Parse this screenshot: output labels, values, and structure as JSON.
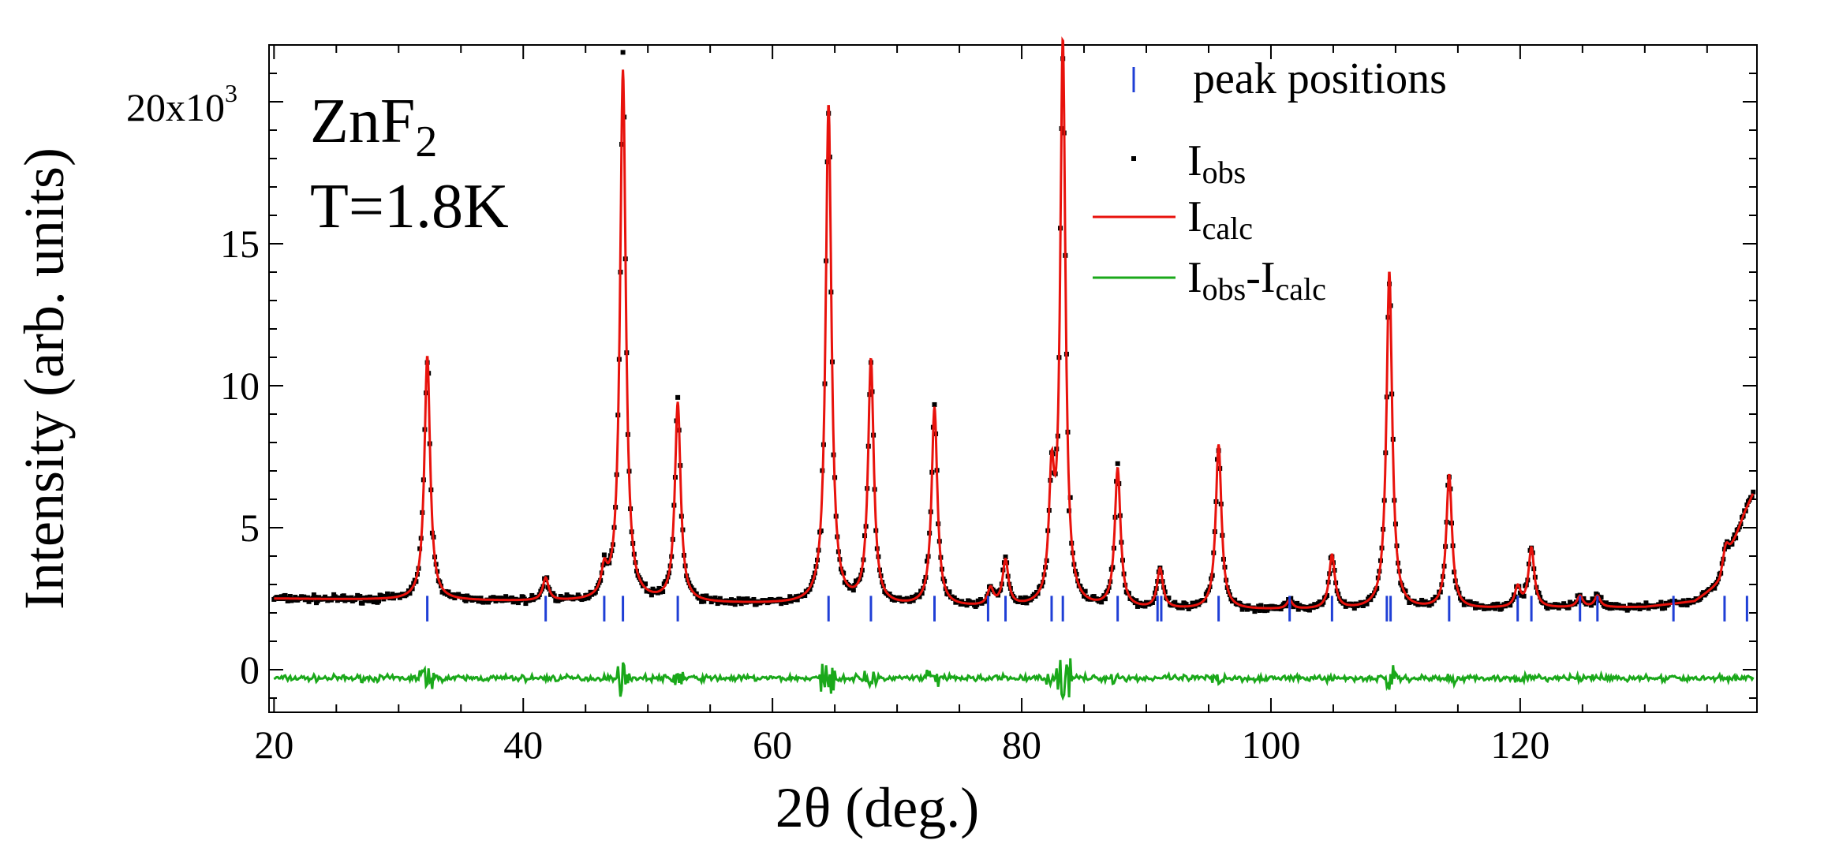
{
  "chart_data": {
    "type": "line",
    "xlabel": "2θ (deg.)",
    "ylabel": "Intensity (arb. units)",
    "xlim": [
      19.6,
      139
    ],
    "ylim": [
      -1.5,
      22.0
    ],
    "y_multiplier_label": "20x10",
    "y_multiplier_exp": "3",
    "x_ticks": [
      20,
      40,
      60,
      80,
      100,
      120
    ],
    "y_ticks": [
      0,
      5,
      10,
      15
    ],
    "y_tick_labels": [
      "0",
      "5",
      "10",
      "15"
    ],
    "annotation": {
      "compound_base": "ZnF",
      "compound_sub": "2",
      "temperature": "T=1.8K"
    },
    "legend": {
      "placement": "top-right",
      "peak_label": "peak positions",
      "obs_label": {
        "base": "I",
        "sub": "obs"
      },
      "calc_label": {
        "base": "I",
        "sub": "calc"
      },
      "diff_label": {
        "base1": "I",
        "sub1": "obs",
        "sep": "-",
        "base2": "I",
        "sub2": "calc"
      }
    },
    "colors": {
      "obs": "#000000",
      "calc": "#e8120c",
      "diff": "#1aa81a",
      "peak": "#1f3fd6"
    },
    "background": [
      [
        20,
        2.5
      ],
      [
        30,
        2.45
      ],
      [
        40,
        2.4
      ],
      [
        50,
        2.35
      ],
      [
        60,
        2.3
      ],
      [
        70,
        2.2
      ],
      [
        80,
        2.15
      ],
      [
        90,
        2.1
      ],
      [
        100,
        2.1
      ],
      [
        110,
        2.1
      ],
      [
        120,
        2.15
      ],
      [
        130,
        2.2
      ],
      [
        134,
        2.4
      ],
      [
        136,
        3.0
      ],
      [
        138,
        5.5
      ],
      [
        139,
        6.5
      ]
    ],
    "peaks": [
      {
        "x": 32.3,
        "height": 8.6,
        "width": 0.35
      },
      {
        "x": 41.8,
        "height": 0.8,
        "width": 0.35
      },
      {
        "x": 46.5,
        "height": 0.9,
        "width": 0.35
      },
      {
        "x": 48.0,
        "height": 18.7,
        "width": 0.35
      },
      {
        "x": 52.4,
        "height": 7.0,
        "width": 0.35
      },
      {
        "x": 64.5,
        "height": 17.6,
        "width": 0.35
      },
      {
        "x": 67.9,
        "height": 8.6,
        "width": 0.35
      },
      {
        "x": 73.0,
        "height": 7.0,
        "width": 0.35
      },
      {
        "x": 77.5,
        "height": 0.6,
        "width": 0.35
      },
      {
        "x": 78.7,
        "height": 1.6,
        "width": 0.35
      },
      {
        "x": 82.4,
        "height": 4.1,
        "width": 0.32
      },
      {
        "x": 83.3,
        "height": 19.8,
        "width": 0.32
      },
      {
        "x": 87.7,
        "height": 4.9,
        "width": 0.35
      },
      {
        "x": 91.1,
        "height": 1.4,
        "width": 0.35
      },
      {
        "x": 95.8,
        "height": 5.8,
        "width": 0.35
      },
      {
        "x": 101.5,
        "height": 0.3,
        "width": 0.35
      },
      {
        "x": 104.9,
        "height": 1.9,
        "width": 0.35
      },
      {
        "x": 109.5,
        "height": 11.9,
        "width": 0.35
      },
      {
        "x": 114.3,
        "height": 4.7,
        "width": 0.35
      },
      {
        "x": 119.8,
        "height": 0.7,
        "width": 0.35
      },
      {
        "x": 120.9,
        "height": 2.1,
        "width": 0.35
      },
      {
        "x": 124.8,
        "height": 0.4,
        "width": 0.35
      },
      {
        "x": 126.2,
        "height": 0.4,
        "width": 0.35
      },
      {
        "x": 136.5,
        "height": 0.8,
        "width": 0.4
      }
    ],
    "peak_positions": [
      32.3,
      41.8,
      46.5,
      48.0,
      52.4,
      64.5,
      67.9,
      73.0,
      77.3,
      78.7,
      82.4,
      83.3,
      87.7,
      90.9,
      91.2,
      95.8,
      101.5,
      104.9,
      109.3,
      109.6,
      114.3,
      119.8,
      120.9,
      124.8,
      126.2,
      132.3,
      136.4,
      138.2
    ],
    "peak_tick_y": [
      1.7,
      2.6
    ],
    "diff_offset": -0.3
  }
}
